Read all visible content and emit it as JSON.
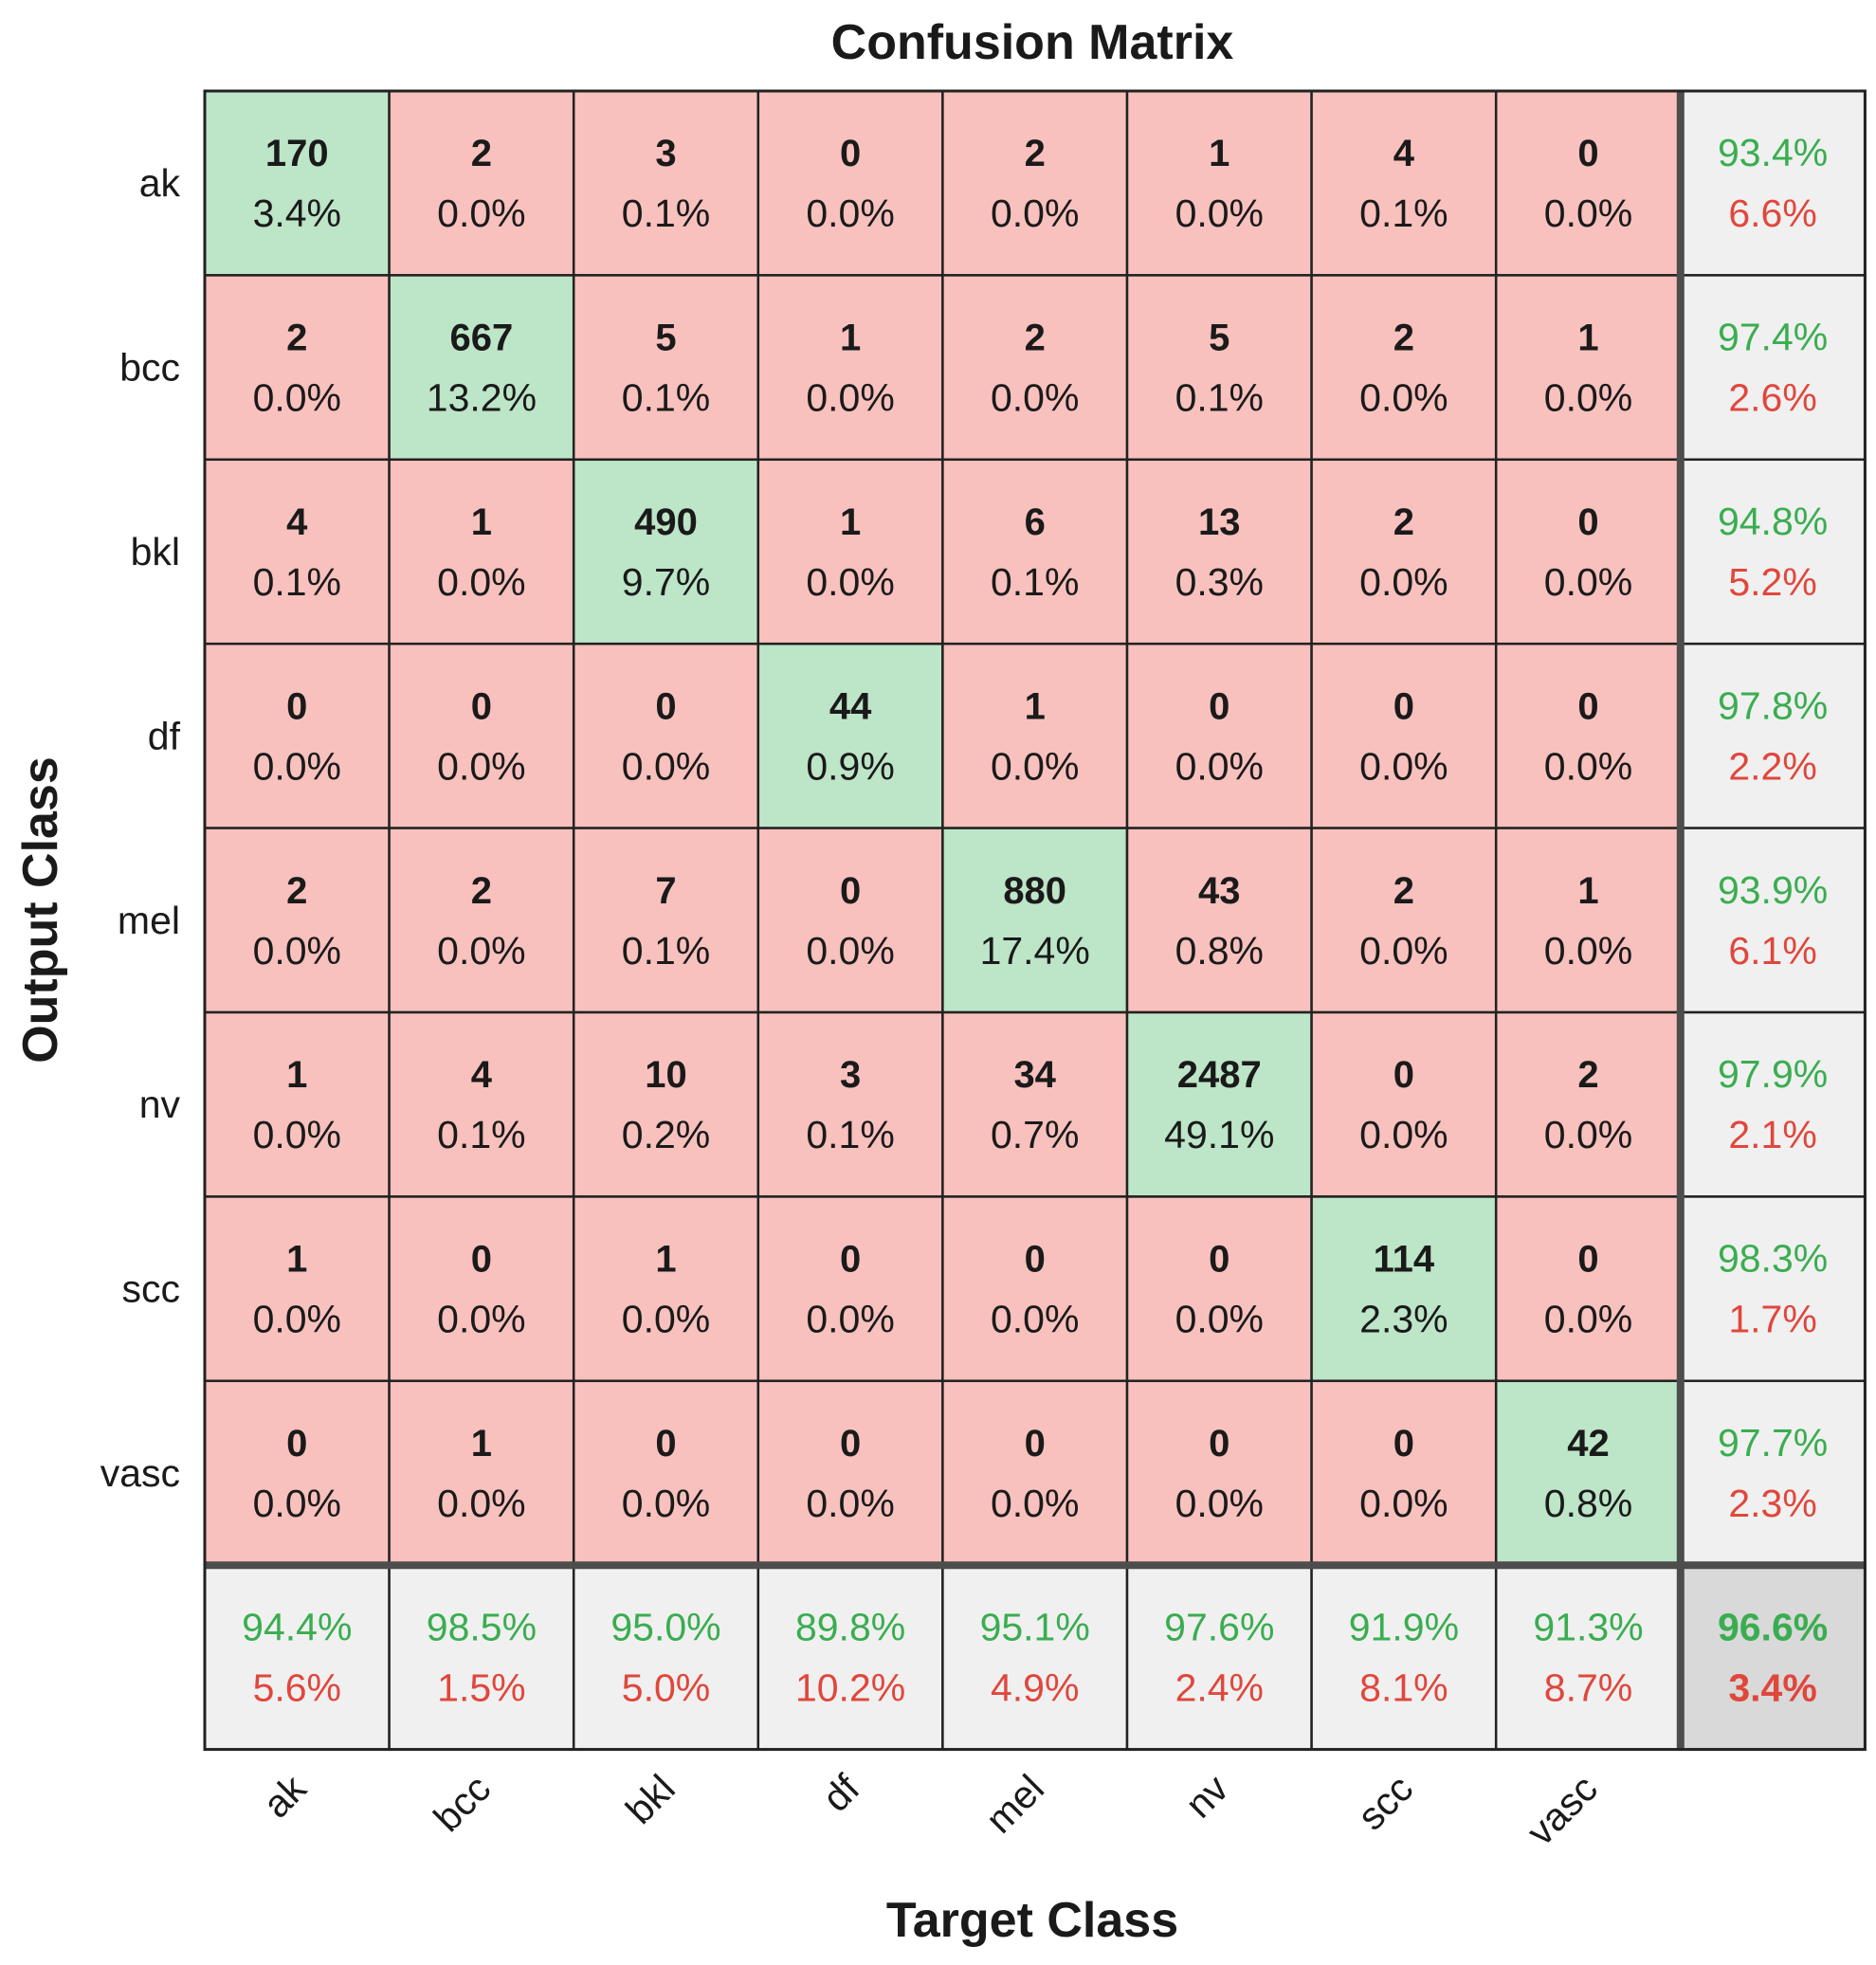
{
  "chart_data": {
    "type": "table",
    "title": "Confusion Matrix",
    "xlabel": "Target Class",
    "ylabel": "Output Class",
    "classes": [
      "ak",
      "bcc",
      "bkl",
      "df",
      "mel",
      "nv",
      "scc",
      "vasc"
    ],
    "counts": [
      [
        170,
        2,
        3,
        0,
        2,
        1,
        4,
        0
      ],
      [
        2,
        667,
        5,
        1,
        2,
        5,
        2,
        1
      ],
      [
        4,
        1,
        490,
        1,
        6,
        13,
        2,
        0
      ],
      [
        0,
        0,
        0,
        44,
        1,
        0,
        0,
        0
      ],
      [
        2,
        2,
        7,
        0,
        880,
        43,
        2,
        1
      ],
      [
        1,
        4,
        10,
        3,
        34,
        2487,
        0,
        2
      ],
      [
        1,
        0,
        1,
        0,
        0,
        0,
        114,
        0
      ],
      [
        0,
        1,
        0,
        0,
        0,
        0,
        0,
        42
      ]
    ],
    "percents": [
      [
        "3.4%",
        "0.0%",
        "0.1%",
        "0.0%",
        "0.0%",
        "0.0%",
        "0.1%",
        "0.0%"
      ],
      [
        "0.0%",
        "13.2%",
        "0.1%",
        "0.0%",
        "0.0%",
        "0.1%",
        "0.0%",
        "0.0%"
      ],
      [
        "0.1%",
        "0.0%",
        "9.7%",
        "0.0%",
        "0.1%",
        "0.3%",
        "0.0%",
        "0.0%"
      ],
      [
        "0.0%",
        "0.0%",
        "0.0%",
        "0.9%",
        "0.0%",
        "0.0%",
        "0.0%",
        "0.0%"
      ],
      [
        "0.0%",
        "0.0%",
        "0.1%",
        "0.0%",
        "17.4%",
        "0.8%",
        "0.0%",
        "0.0%"
      ],
      [
        "0.0%",
        "0.1%",
        "0.2%",
        "0.1%",
        "0.7%",
        "49.1%",
        "0.0%",
        "0.0%"
      ],
      [
        "0.0%",
        "0.0%",
        "0.0%",
        "0.0%",
        "0.0%",
        "0.0%",
        "2.3%",
        "0.0%"
      ],
      [
        "0.0%",
        "0.0%",
        "0.0%",
        "0.0%",
        "0.0%",
        "0.0%",
        "0.0%",
        "0.8%"
      ]
    ],
    "row_summary": [
      {
        "correct": "93.4%",
        "incorrect": "6.6%"
      },
      {
        "correct": "97.4%",
        "incorrect": "2.6%"
      },
      {
        "correct": "94.8%",
        "incorrect": "5.2%"
      },
      {
        "correct": "97.8%",
        "incorrect": "2.2%"
      },
      {
        "correct": "93.9%",
        "incorrect": "6.1%"
      },
      {
        "correct": "97.9%",
        "incorrect": "2.1%"
      },
      {
        "correct": "98.3%",
        "incorrect": "1.7%"
      },
      {
        "correct": "97.7%",
        "incorrect": "2.3%"
      }
    ],
    "col_summary": [
      {
        "correct": "94.4%",
        "incorrect": "5.6%"
      },
      {
        "correct": "98.5%",
        "incorrect": "1.5%"
      },
      {
        "correct": "95.0%",
        "incorrect": "5.0%"
      },
      {
        "correct": "89.8%",
        "incorrect": "10.2%"
      },
      {
        "correct": "95.1%",
        "incorrect": "4.9%"
      },
      {
        "correct": "97.6%",
        "incorrect": "2.4%"
      },
      {
        "correct": "91.9%",
        "incorrect": "8.1%"
      },
      {
        "correct": "91.3%",
        "incorrect": "8.7%"
      }
    ],
    "overall": {
      "correct": "96.6%",
      "incorrect": "3.4%"
    }
  },
  "colors": {
    "diagonal_fill": "#bde5c8",
    "off_diagonal_fill": "#f8c1bd",
    "summary_fill": "#f0f0f0",
    "overall_fill": "#d9d9d9",
    "grid": "#222222",
    "separator": "#4d4d4d",
    "correct_text": "#3aad50",
    "incorrect_text": "#e0473c",
    "text": "#1a1a1a"
  }
}
